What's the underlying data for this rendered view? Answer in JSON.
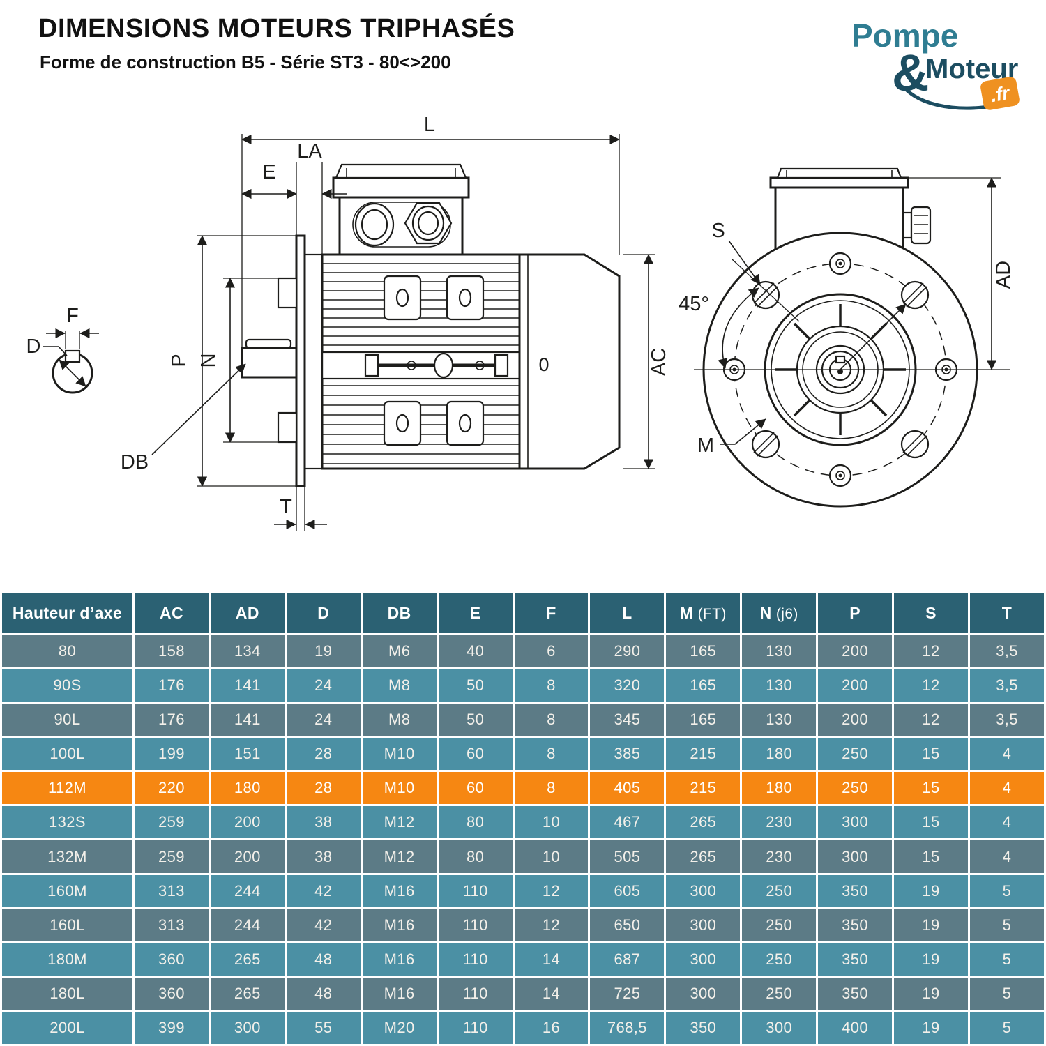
{
  "header": {
    "title": "DIMENSIONS MOTEURS TRIPHASÉS",
    "subtitle": "Forme de construction B5 - Série ST3 - 80<>200"
  },
  "logo": {
    "word1": "Pompe",
    "amp": "&",
    "word2": "Moteur",
    "tld": ".fr",
    "colors": {
      "word1": "#2f7d92",
      "word2": "#1c4d61",
      "badge": "#ef9121"
    }
  },
  "diagram": {
    "labels": {
      "l": "L",
      "e": "E",
      "la": "LA",
      "p": "P",
      "n": "N",
      "db": "DB",
      "t": "T",
      "ac": "AC",
      "rear": "0",
      "d": "D",
      "f": "F",
      "s": "S",
      "angle": "45°",
      "m": "M",
      "ad": "AD"
    }
  },
  "table": {
    "columns": [
      {
        "label": "Hauteur d’axe",
        "suffix": ""
      },
      {
        "label": "AC",
        "suffix": ""
      },
      {
        "label": "AD",
        "suffix": ""
      },
      {
        "label": "D",
        "suffix": ""
      },
      {
        "label": "DB",
        "suffix": ""
      },
      {
        "label": "E",
        "suffix": ""
      },
      {
        "label": "F",
        "suffix": ""
      },
      {
        "label": "L",
        "suffix": ""
      },
      {
        "label": "M",
        "suffix": " (FT)"
      },
      {
        "label": "N",
        "suffix": " (j6)"
      },
      {
        "label": "P",
        "suffix": ""
      },
      {
        "label": "S",
        "suffix": ""
      },
      {
        "label": "T",
        "suffix": ""
      }
    ],
    "rows": [
      {
        "model": "80",
        "values": [
          "158",
          "134",
          "19",
          "M6",
          "40",
          "6",
          "290",
          "165",
          "130",
          "200",
          "12",
          "3,5"
        ],
        "variant": "muted"
      },
      {
        "model": "90S",
        "values": [
          "176",
          "141",
          "24",
          "M8",
          "50",
          "8",
          "320",
          "165",
          "130",
          "200",
          "12",
          "3,5"
        ],
        "variant": "bright"
      },
      {
        "model": "90L",
        "values": [
          "176",
          "141",
          "24",
          "M8",
          "50",
          "8",
          "345",
          "165",
          "130",
          "200",
          "12",
          "3,5"
        ],
        "variant": "muted"
      },
      {
        "model": "100L",
        "values": [
          "199",
          "151",
          "28",
          "M10",
          "60",
          "8",
          "385",
          "215",
          "180",
          "250",
          "15",
          "4"
        ],
        "variant": "bright"
      },
      {
        "model": "112M",
        "values": [
          "220",
          "180",
          "28",
          "M10",
          "60",
          "8",
          "405",
          "215",
          "180",
          "250",
          "15",
          "4"
        ],
        "variant": "highlight"
      },
      {
        "model": "132S",
        "values": [
          "259",
          "200",
          "38",
          "M12",
          "80",
          "10",
          "467",
          "265",
          "230",
          "300",
          "15",
          "4"
        ],
        "variant": "bright"
      },
      {
        "model": "132M",
        "values": [
          "259",
          "200",
          "38",
          "M12",
          "80",
          "10",
          "505",
          "265",
          "230",
          "300",
          "15",
          "4"
        ],
        "variant": "muted"
      },
      {
        "model": "160M",
        "values": [
          "313",
          "244",
          "42",
          "M16",
          "110",
          "12",
          "605",
          "300",
          "250",
          "350",
          "19",
          "5"
        ],
        "variant": "bright"
      },
      {
        "model": "160L",
        "values": [
          "313",
          "244",
          "42",
          "M16",
          "110",
          "12",
          "650",
          "300",
          "250",
          "350",
          "19",
          "5"
        ],
        "variant": "muted"
      },
      {
        "model": "180M",
        "values": [
          "360",
          "265",
          "48",
          "M16",
          "110",
          "14",
          "687",
          "300",
          "250",
          "350",
          "19",
          "5"
        ],
        "variant": "bright"
      },
      {
        "model": "180L",
        "values": [
          "360",
          "265",
          "48",
          "M16",
          "110",
          "14",
          "725",
          "300",
          "250",
          "350",
          "19",
          "5"
        ],
        "variant": "muted"
      },
      {
        "model": "200L",
        "values": [
          "399",
          "300",
          "55",
          "M20",
          "110",
          "16",
          "768,5",
          "350",
          "300",
          "400",
          "19",
          "5"
        ],
        "variant": "bright"
      }
    ],
    "colors": {
      "header": "#2b6173",
      "bright": "#4b90a4",
      "muted": "#5c7b86",
      "highlight": "#f68712"
    }
  }
}
